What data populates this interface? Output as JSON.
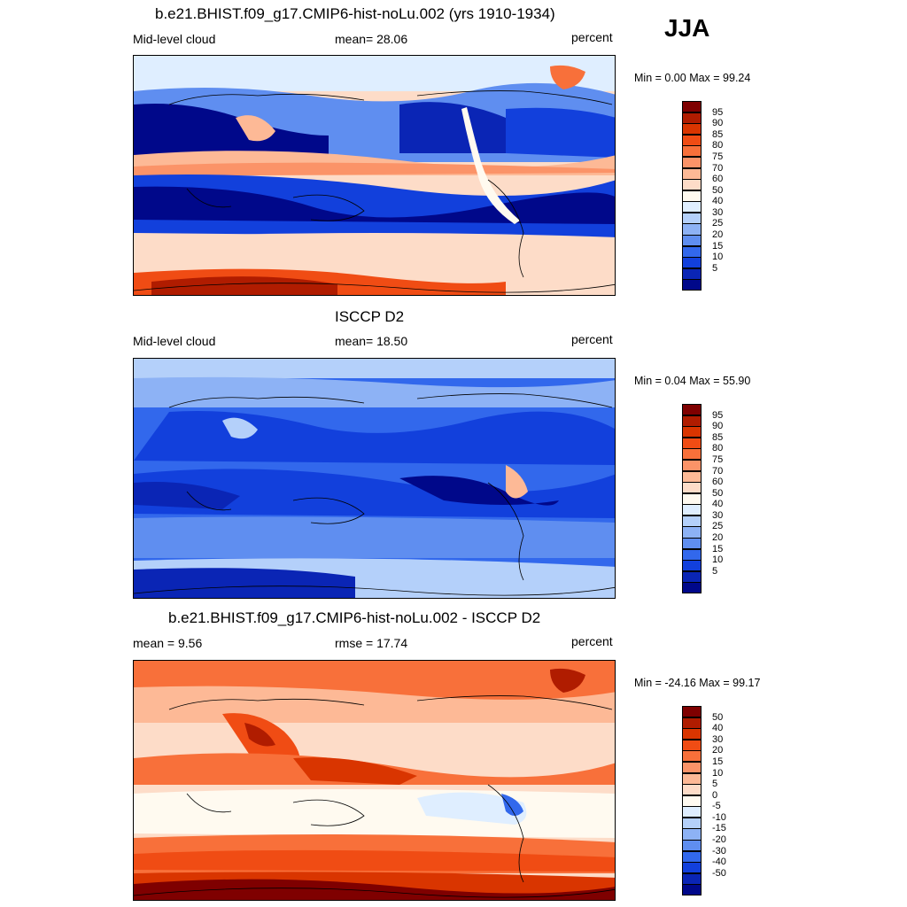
{
  "season": "JJA",
  "panels": [
    {
      "title": "b.e21.BHIST.f09_g17.CMIP6-hist-noLu.002 (yrs 1910-1934)",
      "left_label": "Mid-level cloud",
      "center_label": "mean=  28.06",
      "units": "percent",
      "minmax": "Min =   0.00 Max =  99.24",
      "map_kind": "model"
    },
    {
      "title": "ISCCP D2",
      "left_label": "Mid-level cloud",
      "center_label": "mean=  18.50",
      "units": "percent",
      "minmax": "Min =   0.04 Max =  55.90",
      "map_kind": "obs"
    },
    {
      "title": "b.e21.BHIST.f09_g17.CMIP6-hist-noLu.002 - ISCCP D2",
      "left_label": "mean =   9.56",
      "center_label": "rmse =  17.74",
      "units": "percent",
      "minmax": "Min = -24.16 Max =  99.17",
      "map_kind": "diff"
    }
  ],
  "colorbars": {
    "field": {
      "ticks": [
        "95",
        "90",
        "85",
        "80",
        "75",
        "70",
        "60",
        "50",
        "40",
        "30",
        "25",
        "20",
        "15",
        "10",
        "5"
      ],
      "colors": [
        "#7f0000",
        "#b01c00",
        "#d93500",
        "#f04c14",
        "#f8703a",
        "#fb9368",
        "#fdb996",
        "#fddcc8",
        "#fffaf0",
        "#dfeeff",
        "#b4d0fa",
        "#8db2f5",
        "#5f8ef0",
        "#3268ec",
        "#1240dc",
        "#0a25b5",
        "#00088a"
      ]
    },
    "diff": {
      "ticks": [
        "50",
        "40",
        "30",
        "20",
        "15",
        "10",
        "5",
        "0",
        "-5",
        "-10",
        "-15",
        "-20",
        "-30",
        "-40",
        "-50"
      ],
      "colors": [
        "#7f0000",
        "#b01c00",
        "#d93500",
        "#f04c14",
        "#f8703a",
        "#fb9368",
        "#fdb996",
        "#fddcc8",
        "#fffaf0",
        "#dfeeff",
        "#b4d0fa",
        "#8db2f5",
        "#5f8ef0",
        "#3268ec",
        "#1240dc",
        "#0a25b5",
        "#00088a"
      ]
    }
  }
}
